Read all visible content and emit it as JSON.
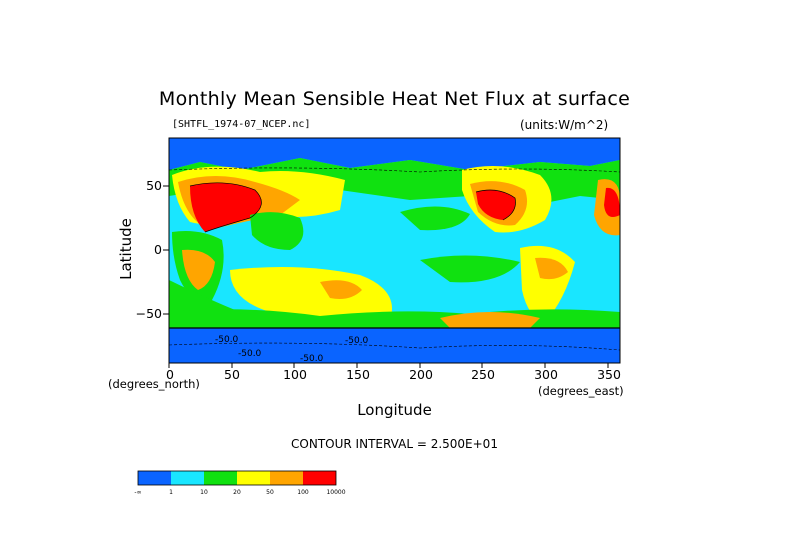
{
  "chart_data": {
    "type": "heatmap",
    "title": "Monthly Mean Sensible Heat Net Flux at surface",
    "dataset": "[SHTFL_1974-07_NCEP.nc]",
    "units": "(units:W/m^2)",
    "xlabel": "Longitude",
    "ylabel": "Latitude",
    "x_unit_left": "(degrees_north)",
    "x_unit_right": "(degrees_east)",
    "xlim": [
      0,
      360
    ],
    "ylim": [
      -90,
      90
    ],
    "x_ticks": [
      "0",
      "50",
      "100",
      "150",
      "200",
      "250",
      "300",
      "350"
    ],
    "y_ticks": [
      "50",
      "0",
      "−50"
    ],
    "contour_note": "CONTOUR INTERVAL = 2.500E+01",
    "contour_labels": [
      "-50.0",
      "-50.0",
      "-50.0",
      "-50.0"
    ],
    "colorbar": {
      "colors": [
        "#0a64ff",
        "#19e6ff",
        "#10e110",
        "#ffff00",
        "#ffa500",
        "#ff0000"
      ],
      "labels": [
        "-∞",
        "1",
        "10",
        "20",
        "50",
        "100",
        "10000"
      ]
    }
  }
}
